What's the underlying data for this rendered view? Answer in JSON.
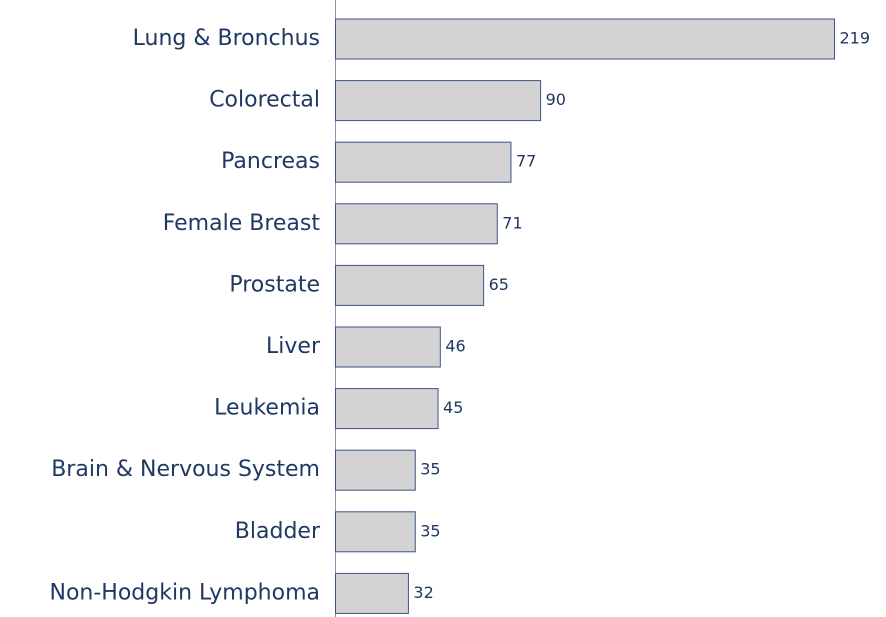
{
  "chart_data": {
    "type": "barh",
    "categories": [
      "Lung & Bronchus",
      "Colorectal",
      "Pancreas",
      "Female Breast",
      "Prostate",
      "Liver",
      "Leukemia",
      "Brain & Nervous System",
      "Bladder",
      "Non-Hodgkin Lymphoma"
    ],
    "values": [
      219,
      90,
      77,
      71,
      65,
      46,
      45,
      35,
      35,
      32
    ],
    "color": "#d3d3d3"
  }
}
